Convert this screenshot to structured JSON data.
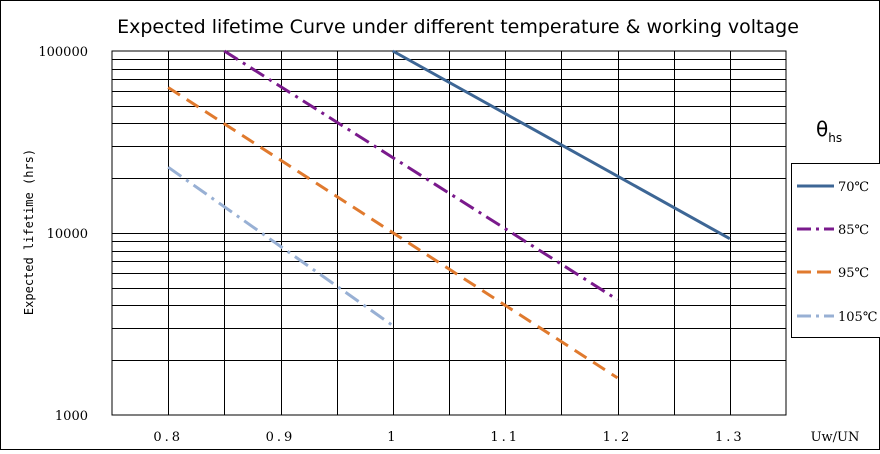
{
  "chart_data": {
    "type": "line",
    "title": "Expected lifetime Curve under different temperature & working voltage",
    "xlabel": "Uw/UN",
    "ylabel": "Expected lifetime (hrs)",
    "x_ticks": [
      "0.8",
      "0.9",
      "1",
      "1.1",
      "1.2",
      "1.3"
    ],
    "y_ticks": [
      "1000",
      "10000",
      "100000"
    ],
    "xlim": [
      0.75,
      1.35
    ],
    "ylim": [
      1000,
      100000
    ],
    "y_scale": "log",
    "grid": true,
    "legend": {
      "title": "θ",
      "title_subscript": "hs",
      "placement": "right"
    },
    "series": [
      {
        "name": "70℃",
        "color": "#3d6695",
        "dash": "solid",
        "x": [
          1.0,
          1.3
        ],
        "y": [
          100000,
          9300
        ]
      },
      {
        "name": "85℃",
        "color": "#7a1a8c",
        "dash": "dashdot",
        "x": [
          0.85,
          1.2
        ],
        "y": [
          100000,
          4300
        ]
      },
      {
        "name": "95℃",
        "color": "#e07a2e",
        "dash": "dash",
        "x": [
          0.8,
          1.2
        ],
        "y": [
          63000,
          1600
        ]
      },
      {
        "name": "105℃",
        "color": "#98b0d4",
        "dash": "dashdot",
        "x": [
          0.8,
          1.0
        ],
        "y": [
          23000,
          3100
        ]
      }
    ]
  }
}
